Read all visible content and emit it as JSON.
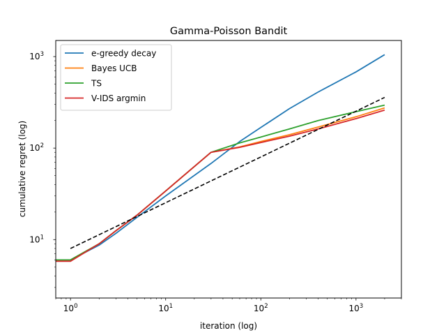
{
  "chart_data": {
    "type": "line",
    "title": "Gamma-Poisson Bandit",
    "xlabel": "iteration (log)",
    "ylabel": "cumulative regret (log)",
    "xscale": "log",
    "yscale": "log",
    "xlim": [
      0.7,
      3000
    ],
    "ylim": [
      2.3,
      1500
    ],
    "x_ticks": [
      {
        "value": 1,
        "base": "10",
        "exp": "0"
      },
      {
        "value": 10,
        "base": "10",
        "exp": "1"
      },
      {
        "value": 100,
        "base": "10",
        "exp": "2"
      },
      {
        "value": 1000,
        "base": "10",
        "exp": "3"
      }
    ],
    "y_ticks": [
      {
        "value": 10,
        "base": "10",
        "exp": "1"
      },
      {
        "value": 100,
        "base": "10",
        "exp": "2"
      },
      {
        "value": 1000,
        "base": "10",
        "exp": "3"
      }
    ],
    "grid": false,
    "legend_position": "top-left",
    "series": [
      {
        "name": "e-greedy decay",
        "color": "#1f77b4",
        "style": "solid",
        "points": [
          [
            0.7,
            6
          ],
          [
            1,
            6
          ],
          [
            2,
            8.7
          ],
          [
            3,
            11.7
          ],
          [
            5,
            17.5
          ],
          [
            10,
            30
          ],
          [
            30,
            68
          ],
          [
            60,
            118
          ],
          [
            100,
            168
          ],
          [
            200,
            270
          ],
          [
            400,
            410
          ],
          [
            1000,
            680
          ],
          [
            2000,
            1050
          ]
        ]
      },
      {
        "name": "Bayes UCB",
        "color": "#ff7f0e",
        "style": "solid",
        "points": [
          [
            0.7,
            6
          ],
          [
            1,
            6
          ],
          [
            2,
            9
          ],
          [
            3,
            12.5
          ],
          [
            5,
            18.5
          ],
          [
            10,
            34
          ],
          [
            30,
            90
          ],
          [
            60,
            103
          ],
          [
            100,
            118
          ],
          [
            200,
            140
          ],
          [
            400,
            170
          ],
          [
            1000,
            220
          ],
          [
            2000,
            275
          ]
        ]
      },
      {
        "name": "TS",
        "color": "#2ca02c",
        "style": "solid",
        "points": [
          [
            0.7,
            6
          ],
          [
            1,
            6
          ],
          [
            2,
            9
          ],
          [
            3,
            12.5
          ],
          [
            5,
            18.5
          ],
          [
            10,
            34
          ],
          [
            30,
            90
          ],
          [
            60,
            114
          ],
          [
            100,
            132
          ],
          [
            200,
            162
          ],
          [
            400,
            200
          ],
          [
            1000,
            250
          ],
          [
            2000,
            295
          ]
        ]
      },
      {
        "name": "V-IDS argmin",
        "color": "#d62728",
        "style": "solid",
        "points": [
          [
            0.7,
            5.8
          ],
          [
            1,
            5.8
          ],
          [
            2,
            9
          ],
          [
            3,
            12.5
          ],
          [
            5,
            18.5
          ],
          [
            10,
            34
          ],
          [
            30,
            90
          ],
          [
            60,
            102
          ],
          [
            100,
            115
          ],
          [
            200,
            135
          ],
          [
            400,
            162
          ],
          [
            1000,
            210
          ],
          [
            2000,
            260
          ]
        ]
      },
      {
        "name": "",
        "color": "#000000",
        "style": "dashed",
        "points": [
          [
            1,
            8
          ],
          [
            10,
            25.3
          ],
          [
            100,
            80
          ],
          [
            1000,
            253
          ],
          [
            2000,
            358
          ]
        ]
      }
    ]
  }
}
